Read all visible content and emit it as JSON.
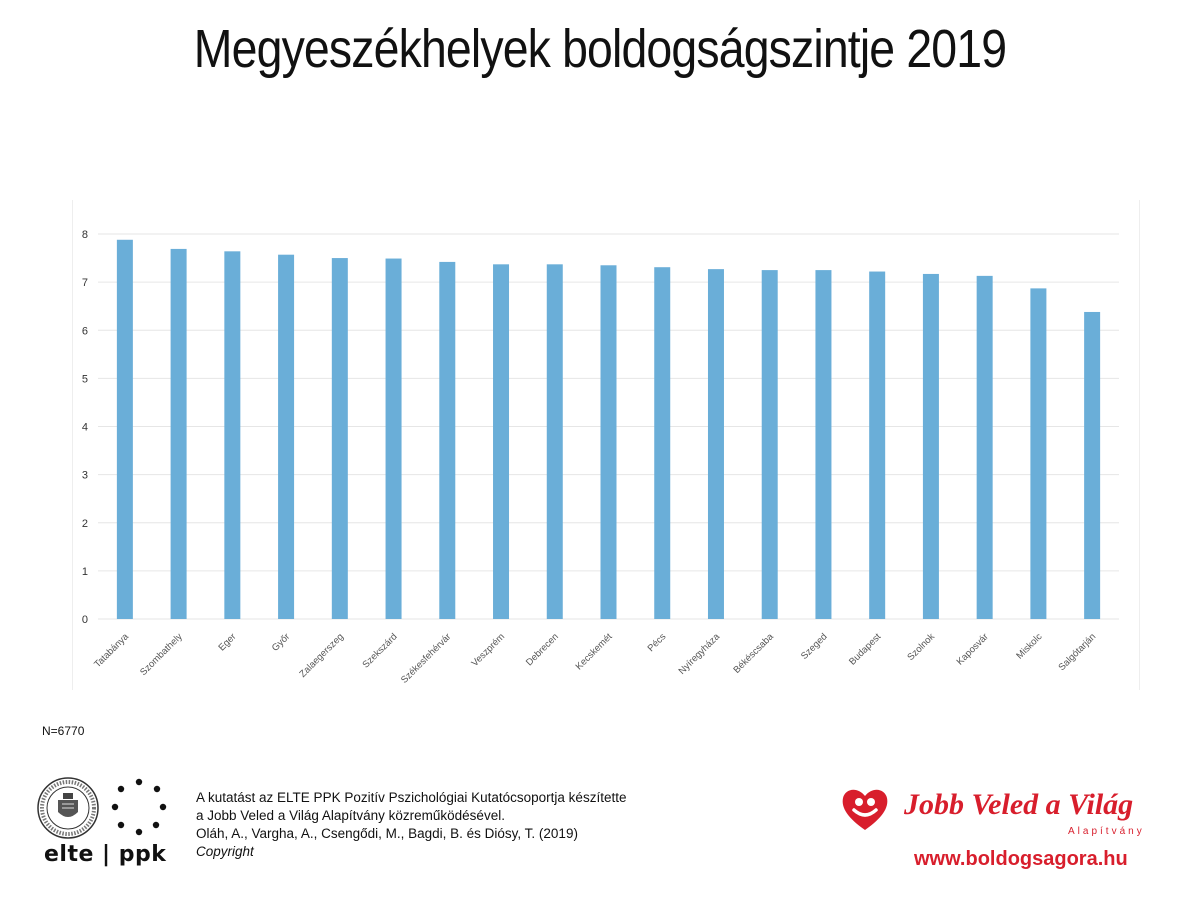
{
  "header": {
    "title": "Megyeszékhelyek boldogságszintje 2019"
  },
  "chart_data": {
    "type": "bar",
    "title": "",
    "xlabel": "",
    "ylabel": "",
    "ylim": [
      0,
      8
    ],
    "yticks": [
      0,
      1,
      2,
      3,
      4,
      5,
      6,
      7,
      8
    ],
    "grid": true,
    "bar_color": "#6aaed8",
    "categories": [
      "Tatabánya",
      "Szombathely",
      "Eger",
      "Győr",
      "Zalaegerszeg",
      "Szekszárd",
      "Székesfehérvár",
      "Veszprém",
      "Debrecen",
      "Kecskemét",
      "Pécs",
      "Nyíregyháza",
      "Békéscsaba",
      "Szeged",
      "Budapest",
      "Szolnok",
      "Kaposvár",
      "Miskolc",
      "Salgótarján"
    ],
    "values": [
      7.88,
      7.69,
      7.64,
      7.57,
      7.5,
      7.49,
      7.42,
      7.37,
      7.37,
      7.35,
      7.31,
      7.27,
      7.25,
      7.25,
      7.22,
      7.17,
      7.13,
      6.87,
      6.38
    ]
  },
  "footer": {
    "sample": "N=6770",
    "elte_logo_text": "elte | ppk",
    "credit_lines": [
      "A kutatást az ELTE PPK Pozitív Pszichológiai Kutatócsoportja készítette",
      "a Jobb Veled a Világ Alapítvány közreműködésével.",
      "Oláh, A., Vargha, A., Csengődi, M., Bagdi, B. és Diósy, T.  (2019)"
    ],
    "copyright": "Copyright",
    "brand_name": "Jobb Veled a Világ",
    "brand_sub": "Alapítvány",
    "url": "www.boldogsagora.hu",
    "brand_color": "#d81e2c"
  }
}
